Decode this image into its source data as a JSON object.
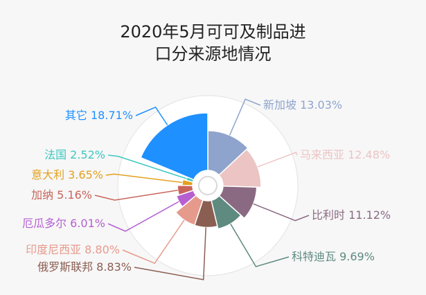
{
  "chart_data": {
    "type": "pie",
    "title_lines": [
      "2020年5月可可及制品进",
      "口分来源地情况"
    ],
    "variant": "rose",
    "slices": [
      {
        "label": "新加坡",
        "value": 13.03,
        "display": "新加坡 13.03%",
        "color": "#8fa4cc"
      },
      {
        "label": "马来西亚",
        "value": 12.48,
        "display": "马来西亚 12.48%",
        "color": "#ecc4c4"
      },
      {
        "label": "比利时",
        "value": 11.12,
        "display": "比利时 11.12%",
        "color": "#8a6a82"
      },
      {
        "label": "科特迪瓦",
        "value": 9.69,
        "display": "科特迪瓦 9.69%",
        "color": "#5e8a80"
      },
      {
        "label": "俄罗斯联邦",
        "value": 8.83,
        "display": "俄罗斯联邦 8.83%",
        "color": "#8b5e52"
      },
      {
        "label": "印度尼西亚",
        "value": 8.8,
        "display": "印度尼西亚 8.80%",
        "color": "#e69a8c"
      },
      {
        "label": "厄瓜多尔",
        "value": 6.01,
        "display": "厄瓜多尔 6.01%",
        "color": "#b55fd0"
      },
      {
        "label": "加纳",
        "value": 5.16,
        "display": "加纳 5.16%",
        "color": "#c8645a"
      },
      {
        "label": "意大利",
        "value": 3.65,
        "display": "意大利 3.65%",
        "color": "#e3a01f"
      },
      {
        "label": "法国",
        "value": 2.52,
        "display": "法国 2.52%",
        "color": "#3cc8c0"
      },
      {
        "label": "其它",
        "value": 18.71,
        "display": "其它 18.71%",
        "color": "#1e90ff"
      }
    ]
  }
}
